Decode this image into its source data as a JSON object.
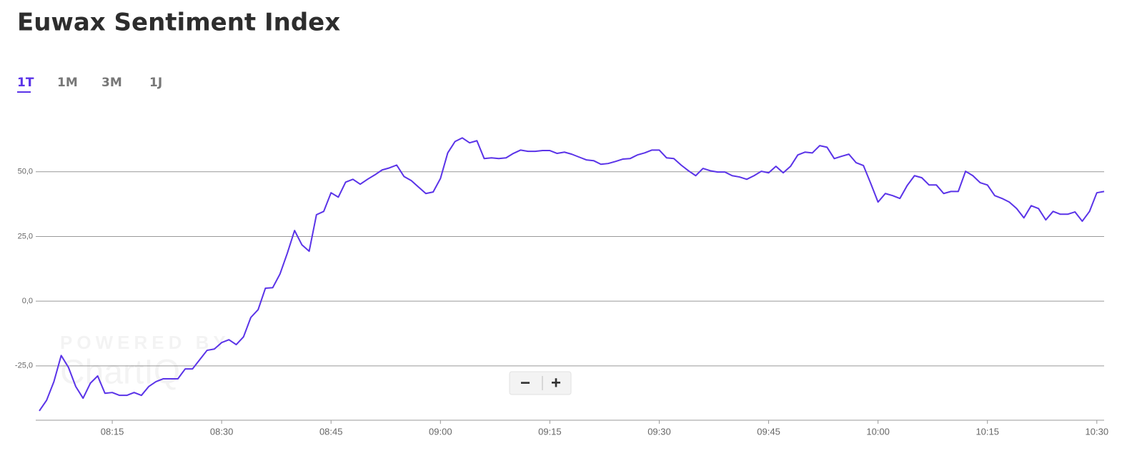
{
  "header": {
    "title": "Euwax Sentiment Index"
  },
  "tabs": {
    "items": [
      "1T",
      "1M",
      "3M",
      "1J"
    ],
    "active": 0
  },
  "watermark": [
    "POWERED BY",
    "ChartIQ"
  ],
  "zoom": [
    "−",
    "+"
  ],
  "chart_data": {
    "type": "line",
    "color": "#5a33e8",
    "grid": true,
    "x": [
      "08:05",
      "08:06",
      "08:07",
      "08:08",
      "08:09",
      "08:10",
      "08:11",
      "08:12",
      "08:13",
      "08:14",
      "08:15",
      "08:16",
      "08:17",
      "08:18",
      "08:19",
      "08:20",
      "08:21",
      "08:22",
      "08:23",
      "08:24",
      "08:25",
      "08:26",
      "08:27",
      "08:28",
      "08:29",
      "08:30",
      "08:31",
      "08:32",
      "08:33",
      "08:34",
      "08:35",
      "08:36",
      "08:37",
      "08:38",
      "08:39",
      "08:40",
      "08:41",
      "08:42",
      "08:43",
      "08:44",
      "08:45",
      "08:46",
      "08:47",
      "08:48",
      "08:49",
      "08:50",
      "08:51",
      "08:52",
      "08:53",
      "08:54",
      "08:55",
      "08:56",
      "08:57",
      "08:58",
      "08:59",
      "09:00",
      "09:01",
      "09:02",
      "09:03",
      "09:04",
      "09:05",
      "09:06",
      "09:07",
      "09:08",
      "09:09",
      "09:10",
      "09:11",
      "09:12",
      "09:13",
      "09:14",
      "09:15",
      "09:16",
      "09:17",
      "09:18",
      "09:19",
      "09:20",
      "09:21",
      "09:22",
      "09:23",
      "09:24",
      "09:25",
      "09:26",
      "09:27",
      "09:28",
      "09:29",
      "09:30",
      "09:31",
      "09:32",
      "09:33",
      "09:34",
      "09:35",
      "09:36",
      "09:37",
      "09:38",
      "09:39",
      "09:40",
      "09:41",
      "09:42",
      "09:43",
      "09:44",
      "09:45",
      "09:46",
      "09:47",
      "09:48",
      "09:49",
      "09:50",
      "09:51",
      "09:52",
      "09:53",
      "09:54",
      "09:55",
      "09:56",
      "09:57",
      "09:58",
      "09:59",
      "10:00",
      "10:01",
      "10:02",
      "10:03",
      "10:04",
      "10:05",
      "10:06",
      "10:07",
      "10:08",
      "10:09",
      "10:10",
      "10:11",
      "10:12",
      "10:13",
      "10:14",
      "10:15",
      "10:16",
      "10:17",
      "10:18",
      "10:19",
      "10:20",
      "10:21",
      "10:22",
      "10:23",
      "10:24",
      "10:25",
      "10:26",
      "10:27",
      "10:28",
      "10:29",
      "10:30",
      "10:31"
    ],
    "values": [
      -42.4,
      -38.3,
      -31.1,
      -21,
      -25.6,
      -33,
      -37.5,
      -31.7,
      -28.9,
      -35.6,
      -35.3,
      -36.4,
      -36.4,
      -35.3,
      -36.4,
      -33,
      -31.1,
      -30,
      -30,
      -30,
      -26.2,
      -26.2,
      -22.6,
      -19,
      -18.5,
      -16,
      -14.9,
      -16.8,
      -13.8,
      -6.3,
      -3.3,
      5,
      5.2,
      10.5,
      18.5,
      27.3,
      21.8,
      19.3,
      33.4,
      34.7,
      41.9,
      40.2,
      46,
      47.1,
      45.2,
      47.1,
      48.8,
      50.7,
      51.5,
      52.6,
      48.2,
      46.6,
      44.1,
      41.6,
      42.2,
      47.4,
      57.3,
      61.7,
      63.1,
      61.2,
      62,
      55.1,
      55.4,
      55.1,
      55.4,
      57.1,
      58.4,
      57.9,
      57.9,
      58.2,
      58.2,
      57.1,
      57.6,
      56.8,
      55.7,
      54.6,
      54.3,
      52.9,
      53.2,
      54,
      54.9,
      55.1,
      56.5,
      57.3,
      58.4,
      58.4,
      55.4,
      55.1,
      52.6,
      50.4,
      48.5,
      51.3,
      50.4,
      49.9,
      49.9,
      48.5,
      48,
      47.1,
      48.5,
      50.2,
      49.6,
      52.1,
      49.6,
      52.1,
      56.5,
      57.6,
      57.3,
      60.1,
      59.5,
      55.1,
      56,
      56.8,
      53.5,
      52.4,
      45.5,
      38.3,
      41.6,
      40.8,
      39.7,
      44.7,
      48.5,
      47.7,
      44.9,
      44.9,
      41.6,
      42.4,
      42.4,
      50.2,
      48.5,
      45.8,
      44.9,
      40.8,
      39.7,
      38.3,
      35.8,
      32.2,
      36.9,
      35.8,
      31.4,
      34.7,
      33.6,
      33.6,
      34.5,
      30.9,
      34.7,
      41.9,
      42.4
    ],
    "xlim": [
      "08:05",
      "10:31"
    ],
    "xticks": [
      "08:15",
      "08:30",
      "08:45",
      "09:00",
      "09:15",
      "09:30",
      "09:45",
      "10:00",
      "10:15",
      "10:30"
    ],
    "ylim": [
      -46,
      72
    ],
    "yticks": [
      {
        "value": -25,
        "label": "-25,0"
      },
      {
        "value": 0,
        "label": "0,0"
      },
      {
        "value": 25,
        "label": "25,0"
      },
      {
        "value": 50,
        "label": "50,0"
      }
    ]
  }
}
